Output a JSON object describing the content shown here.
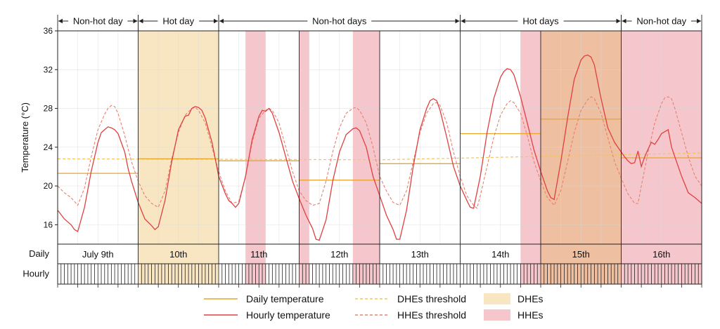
{
  "chart_data": {
    "type": "line",
    "ylabel": "Temperature (°C)",
    "ylim": [
      14,
      36
    ],
    "yticks": [
      16,
      20,
      24,
      28,
      32,
      36
    ],
    "day_labels": [
      "July 9th",
      "10th",
      "11th",
      "12th",
      "13th",
      "14th",
      "15th",
      "16th"
    ],
    "row_labels": {
      "daily": "Daily",
      "hourly": "Hourly"
    },
    "periods": [
      {
        "label": "Non-hot day",
        "start_day": 0,
        "end_day": 1
      },
      {
        "label": "Hot day",
        "start_day": 1,
        "end_day": 2
      },
      {
        "label": "Non-hot days",
        "start_day": 2,
        "end_day": 5
      },
      {
        "label": "Hot days",
        "start_day": 5,
        "end_day": 7
      },
      {
        "label": "Non-hot day",
        "start_day": 7,
        "end_day": 8
      }
    ],
    "dhe_spans_hours": [
      [
        24,
        48
      ],
      [
        144,
        168
      ]
    ],
    "hhe_spans_hours": [
      [
        56,
        62
      ],
      [
        72,
        75
      ],
      [
        88,
        96
      ],
      [
        138,
        192
      ]
    ],
    "daily_temperature": [
      21.3,
      22.8,
      22.6,
      20.6,
      22.3,
      25.4,
      26.9,
      22.9
    ],
    "dhe_threshold": [
      {
        "hour": 0,
        "value": 22.8
      },
      {
        "hour": 96,
        "value": 22.7
      },
      {
        "hour": 192,
        "value": 23.4
      }
    ],
    "hourly_temperature": [
      {
        "hour": 0,
        "value": 17.5
      },
      {
        "hour": 2,
        "value": 16.6
      },
      {
        "hour": 4,
        "value": 16.0
      },
      {
        "hour": 5,
        "value": 15.5
      },
      {
        "hour": 6,
        "value": 15.3
      },
      {
        "hour": 8,
        "value": 17.8
      },
      {
        "hour": 10,
        "value": 21.5
      },
      {
        "hour": 12,
        "value": 24.5
      },
      {
        "hour": 13,
        "value": 25.5
      },
      {
        "hour": 14,
        "value": 25.8
      },
      {
        "hour": 15,
        "value": 26.1
      },
      {
        "hour": 16,
        "value": 26.0
      },
      {
        "hour": 17,
        "value": 25.8
      },
      {
        "hour": 18,
        "value": 25.4
      },
      {
        "hour": 20,
        "value": 23.5
      },
      {
        "hour": 21,
        "value": 21.8
      },
      {
        "hour": 22,
        "value": 20.5
      },
      {
        "hour": 24,
        "value": 18.3
      },
      {
        "hour": 26,
        "value": 16.6
      },
      {
        "hour": 28,
        "value": 15.9
      },
      {
        "hour": 29,
        "value": 15.5
      },
      {
        "hour": 30,
        "value": 15.8
      },
      {
        "hour": 32,
        "value": 18.5
      },
      {
        "hour": 34,
        "value": 22.5
      },
      {
        "hour": 36,
        "value": 25.8
      },
      {
        "hour": 38,
        "value": 27.2
      },
      {
        "hour": 39,
        "value": 27.3
      },
      {
        "hour": 40,
        "value": 28.0
      },
      {
        "hour": 41,
        "value": 28.2
      },
      {
        "hour": 42,
        "value": 28.1
      },
      {
        "hour": 43,
        "value": 27.8
      },
      {
        "hour": 44,
        "value": 27.0
      },
      {
        "hour": 46,
        "value": 24.5
      },
      {
        "hour": 48,
        "value": 21.0
      },
      {
        "hour": 50,
        "value": 19.2
      },
      {
        "hour": 51,
        "value": 18.5
      },
      {
        "hour": 52,
        "value": 18.2
      },
      {
        "hour": 53,
        "value": 17.8
      },
      {
        "hour": 54,
        "value": 18.2
      },
      {
        "hour": 56,
        "value": 21.0
      },
      {
        "hour": 58,
        "value": 24.8
      },
      {
        "hour": 60,
        "value": 27.2
      },
      {
        "hour": 61,
        "value": 27.8
      },
      {
        "hour": 62,
        "value": 27.7
      },
      {
        "hour": 63,
        "value": 28.0
      },
      {
        "hour": 64,
        "value": 27.5
      },
      {
        "hour": 66,
        "value": 25.5
      },
      {
        "hour": 68,
        "value": 23.0
      },
      {
        "hour": 70,
        "value": 20.5
      },
      {
        "hour": 72,
        "value": 18.7
      },
      {
        "hour": 74,
        "value": 17.0
      },
      {
        "hour": 76,
        "value": 15.6
      },
      {
        "hour": 77,
        "value": 14.5
      },
      {
        "hour": 78,
        "value": 14.4
      },
      {
        "hour": 80,
        "value": 16.5
      },
      {
        "hour": 82,
        "value": 20.5
      },
      {
        "hour": 84,
        "value": 23.5
      },
      {
        "hour": 86,
        "value": 25.3
      },
      {
        "hour": 88,
        "value": 25.9
      },
      {
        "hour": 89,
        "value": 26.0
      },
      {
        "hour": 90,
        "value": 25.7
      },
      {
        "hour": 92,
        "value": 24.0
      },
      {
        "hour": 94,
        "value": 21.0
      },
      {
        "hour": 96,
        "value": 19.0
      },
      {
        "hour": 98,
        "value": 17.0
      },
      {
        "hour": 100,
        "value": 15.5
      },
      {
        "hour": 101,
        "value": 14.5
      },
      {
        "hour": 102,
        "value": 14.5
      },
      {
        "hour": 104,
        "value": 17.5
      },
      {
        "hour": 106,
        "value": 22.0
      },
      {
        "hour": 108,
        "value": 25.8
      },
      {
        "hour": 110,
        "value": 28.0
      },
      {
        "hour": 111,
        "value": 28.8
      },
      {
        "hour": 112,
        "value": 29.0
      },
      {
        "hour": 113,
        "value": 28.8
      },
      {
        "hour": 114,
        "value": 27.8
      },
      {
        "hour": 116,
        "value": 25.0
      },
      {
        "hour": 118,
        "value": 22.0
      },
      {
        "hour": 120,
        "value": 20.0
      },
      {
        "hour": 122,
        "value": 18.5
      },
      {
        "hour": 123,
        "value": 17.8
      },
      {
        "hour": 124,
        "value": 17.7
      },
      {
        "hour": 126,
        "value": 21.0
      },
      {
        "hour": 128,
        "value": 25.5
      },
      {
        "hour": 130,
        "value": 29.0
      },
      {
        "hour": 132,
        "value": 31.2
      },
      {
        "hour": 133,
        "value": 31.8
      },
      {
        "hour": 134,
        "value": 32.1
      },
      {
        "hour": 135,
        "value": 32.0
      },
      {
        "hour": 136,
        "value": 31.5
      },
      {
        "hour": 138,
        "value": 29.2
      },
      {
        "hour": 140,
        "value": 26.5
      },
      {
        "hour": 142,
        "value": 23.7
      },
      {
        "hour": 144,
        "value": 21.5
      },
      {
        "hour": 146,
        "value": 19.5
      },
      {
        "hour": 147,
        "value": 18.8
      },
      {
        "hour": 148,
        "value": 18.6
      },
      {
        "hour": 150,
        "value": 22.5
      },
      {
        "hour": 152,
        "value": 27.0
      },
      {
        "hour": 154,
        "value": 31.0
      },
      {
        "hour": 156,
        "value": 33.0
      },
      {
        "hour": 157,
        "value": 33.4
      },
      {
        "hour": 158,
        "value": 33.5
      },
      {
        "hour": 159,
        "value": 33.3
      },
      {
        "hour": 160,
        "value": 32.5
      },
      {
        "hour": 162,
        "value": 29.0
      },
      {
        "hour": 164,
        "value": 26.0
      },
      {
        "hour": 166,
        "value": 24.5
      },
      {
        "hour": 168,
        "value": 23.5
      },
      {
        "hour": 169,
        "value": 23.0
      },
      {
        "hour": 170,
        "value": 22.6
      },
      {
        "hour": 171,
        "value": 22.3
      },
      {
        "hour": 172,
        "value": 22.4
      },
      {
        "hour": 173,
        "value": 23.6
      },
      {
        "hour": 174,
        "value": 22.0
      },
      {
        "hour": 175,
        "value": 23.0
      },
      {
        "hour": 176,
        "value": 23.8
      },
      {
        "hour": 177,
        "value": 24.5
      },
      {
        "hour": 178,
        "value": 24.3
      },
      {
        "hour": 179,
        "value": 24.8
      },
      {
        "hour": 180,
        "value": 25.4
      },
      {
        "hour": 181,
        "value": 25.6
      },
      {
        "hour": 182,
        "value": 25.8
      },
      {
        "hour": 183,
        "value": 24.0
      },
      {
        "hour": 184,
        "value": 23.0
      },
      {
        "hour": 186,
        "value": 21.0
      },
      {
        "hour": 188,
        "value": 19.3
      },
      {
        "hour": 190,
        "value": 18.8
      },
      {
        "hour": 192,
        "value": 18.2
      }
    ],
    "hhe_threshold": [
      {
        "hour": 0,
        "value": 20.0
      },
      {
        "hour": 2,
        "value": 19.3
      },
      {
        "hour": 4,
        "value": 18.8
      },
      {
        "hour": 6,
        "value": 18.0
      },
      {
        "hour": 8,
        "value": 19.8
      },
      {
        "hour": 10,
        "value": 23.0
      },
      {
        "hour": 12,
        "value": 25.8
      },
      {
        "hour": 14,
        "value": 27.4
      },
      {
        "hour": 15,
        "value": 28.0
      },
      {
        "hour": 16,
        "value": 28.3
      },
      {
        "hour": 17,
        "value": 28.2
      },
      {
        "hour": 18,
        "value": 27.5
      },
      {
        "hour": 20,
        "value": 25.2
      },
      {
        "hour": 22,
        "value": 22.5
      },
      {
        "hour": 24,
        "value": 20.5
      },
      {
        "hour": 26,
        "value": 19.0
      },
      {
        "hour": 28,
        "value": 18.2
      },
      {
        "hour": 30,
        "value": 17.8
      },
      {
        "hour": 32,
        "value": 19.5
      },
      {
        "hour": 34,
        "value": 22.8
      },
      {
        "hour": 36,
        "value": 25.5
      },
      {
        "hour": 38,
        "value": 27.3
      },
      {
        "hour": 40,
        "value": 28.0
      },
      {
        "hour": 41,
        "value": 28.1
      },
      {
        "hour": 42,
        "value": 27.8
      },
      {
        "hour": 44,
        "value": 26.5
      },
      {
        "hour": 46,
        "value": 24.0
      },
      {
        "hour": 48,
        "value": 21.5
      },
      {
        "hour": 50,
        "value": 19.5
      },
      {
        "hour": 52,
        "value": 18.2
      },
      {
        "hour": 54,
        "value": 18.4
      },
      {
        "hour": 56,
        "value": 21.0
      },
      {
        "hour": 58,
        "value": 24.5
      },
      {
        "hour": 60,
        "value": 27.0
      },
      {
        "hour": 62,
        "value": 27.8
      },
      {
        "hour": 63,
        "value": 28.0
      },
      {
        "hour": 64,
        "value": 27.8
      },
      {
        "hour": 66,
        "value": 26.5
      },
      {
        "hour": 68,
        "value": 24.0
      },
      {
        "hour": 70,
        "value": 21.5
      },
      {
        "hour": 72,
        "value": 19.5
      },
      {
        "hour": 74,
        "value": 18.5
      },
      {
        "hour": 76,
        "value": 18.0
      },
      {
        "hour": 78,
        "value": 18.2
      },
      {
        "hour": 80,
        "value": 20.5
      },
      {
        "hour": 82,
        "value": 23.5
      },
      {
        "hour": 84,
        "value": 26.0
      },
      {
        "hour": 86,
        "value": 27.5
      },
      {
        "hour": 88,
        "value": 28.0
      },
      {
        "hour": 89,
        "value": 28.1
      },
      {
        "hour": 90,
        "value": 27.8
      },
      {
        "hour": 92,
        "value": 26.5
      },
      {
        "hour": 94,
        "value": 24.0
      },
      {
        "hour": 96,
        "value": 21.0
      },
      {
        "hour": 98,
        "value": 19.5
      },
      {
        "hour": 100,
        "value": 18.3
      },
      {
        "hour": 102,
        "value": 18.0
      },
      {
        "hour": 104,
        "value": 19.5
      },
      {
        "hour": 106,
        "value": 22.5
      },
      {
        "hour": 108,
        "value": 25.5
      },
      {
        "hour": 110,
        "value": 27.5
      },
      {
        "hour": 112,
        "value": 28.5
      },
      {
        "hour": 113,
        "value": 28.6
      },
      {
        "hour": 114,
        "value": 28.3
      },
      {
        "hour": 116,
        "value": 26.5
      },
      {
        "hour": 118,
        "value": 23.5
      },
      {
        "hour": 120,
        "value": 21.0
      },
      {
        "hour": 122,
        "value": 19.0
      },
      {
        "hour": 124,
        "value": 18.0
      },
      {
        "hour": 125,
        "value": 17.7
      },
      {
        "hour": 126,
        "value": 19.0
      },
      {
        "hour": 128,
        "value": 22.0
      },
      {
        "hour": 130,
        "value": 25.0
      },
      {
        "hour": 132,
        "value": 27.3
      },
      {
        "hour": 134,
        "value": 28.5
      },
      {
        "hour": 135,
        "value": 28.8
      },
      {
        "hour": 136,
        "value": 28.6
      },
      {
        "hour": 138,
        "value": 27.5
      },
      {
        "hour": 140,
        "value": 25.2
      },
      {
        "hour": 142,
        "value": 22.5
      },
      {
        "hour": 144,
        "value": 20.5
      },
      {
        "hour": 146,
        "value": 18.8
      },
      {
        "hour": 148,
        "value": 18.0
      },
      {
        "hour": 150,
        "value": 19.5
      },
      {
        "hour": 152,
        "value": 22.5
      },
      {
        "hour": 154,
        "value": 25.5
      },
      {
        "hour": 156,
        "value": 27.8
      },
      {
        "hour": 158,
        "value": 28.9
      },
      {
        "hour": 159,
        "value": 29.2
      },
      {
        "hour": 160,
        "value": 29.0
      },
      {
        "hour": 162,
        "value": 27.5
      },
      {
        "hour": 164,
        "value": 25.0
      },
      {
        "hour": 166,
        "value": 22.5
      },
      {
        "hour": 168,
        "value": 20.8
      },
      {
        "hour": 170,
        "value": 19.2
      },
      {
        "hour": 172,
        "value": 18.2
      },
      {
        "hour": 173,
        "value": 18.2
      },
      {
        "hour": 174,
        "value": 20.0
      },
      {
        "hour": 176,
        "value": 23.5
      },
      {
        "hour": 178,
        "value": 26.5
      },
      {
        "hour": 180,
        "value": 28.5
      },
      {
        "hour": 181,
        "value": 29.1
      },
      {
        "hour": 182,
        "value": 29.2
      },
      {
        "hour": 183,
        "value": 29.0
      },
      {
        "hour": 184,
        "value": 28.0
      },
      {
        "hour": 186,
        "value": 25.5
      },
      {
        "hour": 188,
        "value": 23.0
      },
      {
        "hour": 190,
        "value": 21.0
      },
      {
        "hour": 192,
        "value": 20.0
      }
    ],
    "legend": [
      {
        "key": "daily",
        "label": "Daily temperature",
        "kind": "line",
        "dashed": false,
        "color": "#E8A628"
      },
      {
        "key": "dhe_thr",
        "label": "DHEs threshold",
        "kind": "line",
        "dashed": true,
        "color": "#F2C55A"
      },
      {
        "key": "dhe",
        "label": "DHEs",
        "kind": "box",
        "color": "#F8E6C2"
      },
      {
        "key": "hourly",
        "label": "Hourly temperature",
        "kind": "line",
        "dashed": false,
        "color": "#E04040"
      },
      {
        "key": "hhe_thr",
        "label": "HHEs threshold",
        "kind": "line",
        "dashed": true,
        "color": "#E88070"
      },
      {
        "key": "hhe",
        "label": "HHEs",
        "kind": "box",
        "color": "#F5C6CC"
      }
    ],
    "grid": true,
    "colors": {
      "dhe_fill": "#F8E6C2",
      "hhe_fill": "#F5C6CC",
      "overlap_fill": "#EEBFA1",
      "hourly_line": "#E04040",
      "hhe_threshold_line": "#E88070",
      "daily_line": "#E8A628",
      "dhe_threshold_line": "#F2C55A"
    }
  }
}
